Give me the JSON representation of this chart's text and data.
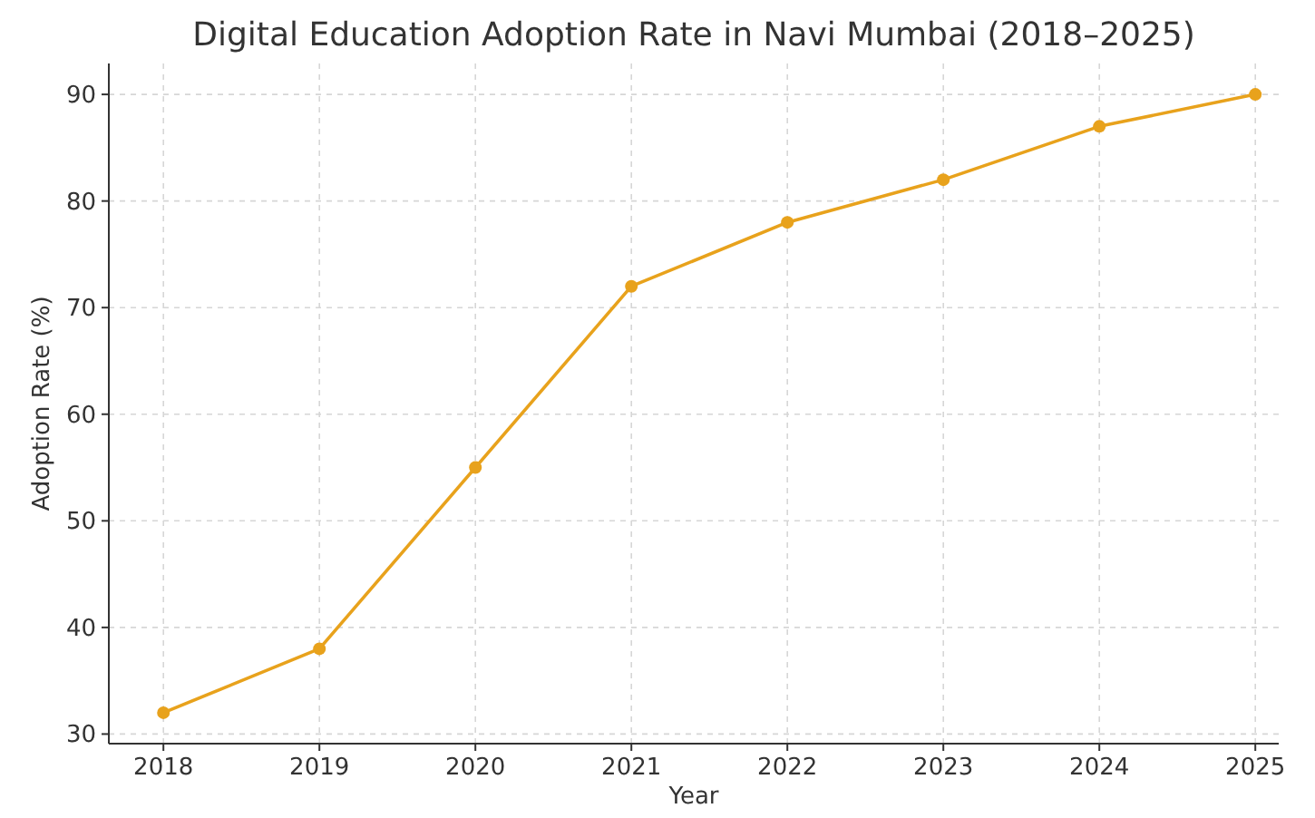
{
  "chart_data": {
    "type": "line",
    "title": "Digital Education Adoption Rate in Navi Mumbai (2018–2025)",
    "xlabel": "Year",
    "ylabel": "Adoption Rate (%)",
    "x": [
      2018,
      2019,
      2020,
      2021,
      2022,
      2023,
      2024,
      2025
    ],
    "series": [
      {
        "color": "#e8a21c",
        "values": [
          32,
          38,
          55,
          72,
          78,
          82,
          87,
          90
        ]
      }
    ],
    "xlim": [
      2017.65,
      2025.15
    ],
    "xticks": [
      2018,
      2019,
      2020,
      2021,
      2022,
      2023,
      2024,
      2025
    ],
    "ylim": [
      29.1,
      92.9
    ],
    "yticks": [
      30,
      40,
      50,
      60,
      70,
      80,
      90
    ],
    "grid": true,
    "marker": "circle",
    "line_style": "solid"
  }
}
